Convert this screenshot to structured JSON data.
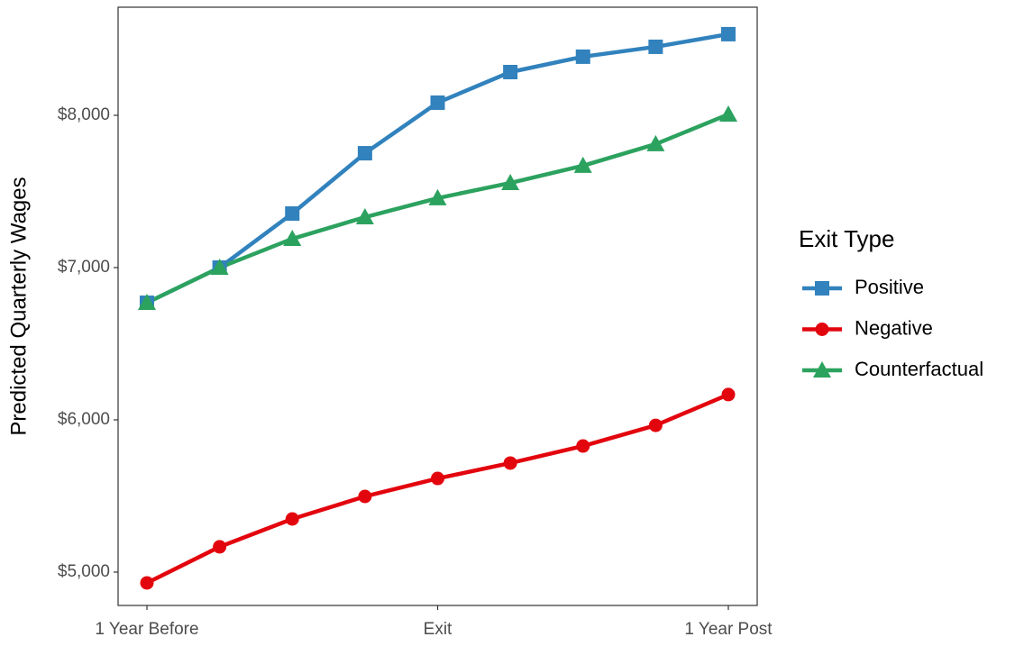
{
  "chart_data": {
    "type": "line",
    "y_label": "Predicted Quarterly Wages",
    "legend_title": "Exit Type",
    "legend_position": "right",
    "grid": false,
    "categories": [
      "1 Year Before",
      null,
      null,
      null,
      "Exit",
      null,
      null,
      null,
      "1 Year Post"
    ],
    "series": [
      {
        "name": "Positive",
        "color": "#3182bd",
        "marker": "square",
        "values": [
          6769,
          7000,
          7355,
          7751,
          8083,
          8284,
          8385,
          8450,
          8533
        ]
      },
      {
        "name": "Negative",
        "color": "#e3050e",
        "marker": "circle",
        "values": [
          4929,
          5166,
          5349,
          5497,
          5615,
          5716,
          5828,
          5964,
          6166
        ]
      },
      {
        "name": "Counterfactual",
        "color": "#2ca25f",
        "marker": "triangle",
        "values": [
          6769,
          7000,
          7189,
          7331,
          7456,
          7556,
          7669,
          7811,
          8006
        ]
      }
    ],
    "ylim": [
      4781,
      8710
    ],
    "yticks": [
      {
        "value": 5000,
        "label": "$5,000"
      },
      {
        "value": 6000,
        "label": "$6,000"
      },
      {
        "value": 7000,
        "label": "$7,000"
      },
      {
        "value": 8000,
        "label": "$8,000"
      }
    ]
  }
}
